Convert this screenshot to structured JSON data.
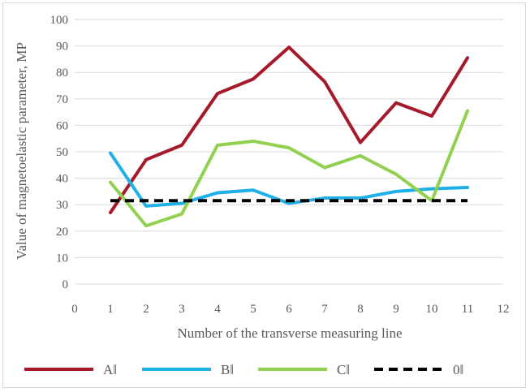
{
  "chart_data": {
    "type": "line",
    "title": "",
    "xlabel": "Number of the transverse measuring line",
    "ylabel": "Value of magnetoelastic parameter, MP",
    "xlim": [
      0,
      12
    ],
    "ylim": [
      0,
      100
    ],
    "x_ticks": [
      0,
      1,
      2,
      3,
      4,
      5,
      6,
      7,
      8,
      9,
      10,
      11,
      12
    ],
    "y_ticks": [
      0,
      10,
      20,
      30,
      40,
      50,
      60,
      70,
      80,
      90,
      100
    ],
    "grid": "horizontal",
    "legend_position": "bottom",
    "x": [
      1,
      2,
      3,
      4,
      5,
      6,
      7,
      8,
      9,
      10,
      11
    ],
    "series": [
      {
        "name": "A‖",
        "color": "#a5192b",
        "dash": "solid",
        "values": [
          27,
          47,
          52.5,
          72,
          77.5,
          89.5,
          76.5,
          53.5,
          68.5,
          63.5,
          85.5
        ]
      },
      {
        "name": "B‖",
        "color": "#20b0e8",
        "dash": "solid",
        "values": [
          49.5,
          29.5,
          30.5,
          34.5,
          35.5,
          30.5,
          32.5,
          32.5,
          35,
          36,
          36.5
        ]
      },
      {
        "name": "C‖",
        "color": "#92d050",
        "dash": "solid",
        "values": [
          38.5,
          22,
          26.5,
          52.5,
          54,
          51.5,
          44,
          48.5,
          41.5,
          31.5,
          65.5
        ]
      },
      {
        "name": "0‖",
        "color": "#000000",
        "dash": "dashed",
        "values": [
          31.5,
          31.5,
          31.5,
          31.5,
          31.5,
          31.5,
          31.5,
          31.5,
          31.5,
          31.5,
          31.5
        ]
      }
    ]
  }
}
